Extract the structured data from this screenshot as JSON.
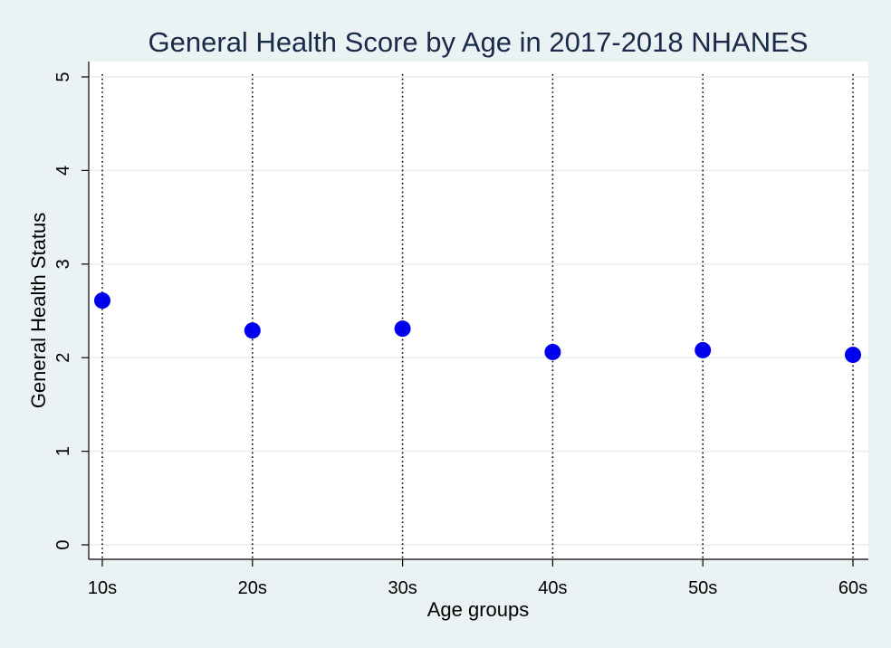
{
  "chart_data": {
    "type": "scatter",
    "title": "General Health Score by Age in 2017-2018 NHANES",
    "xlabel": "Age groups",
    "ylabel": "General Health Status",
    "categories": [
      "10s",
      "20s",
      "30s",
      "40s",
      "50s",
      "60s"
    ],
    "series": [
      {
        "values": [
          2.61,
          2.29,
          2.31,
          2.06,
          2.08,
          2.03
        ]
      }
    ],
    "ylim": [
      0,
      5
    ],
    "yticks": [
      "0",
      "1",
      "2",
      "3",
      "4",
      "5"
    ],
    "grid": true,
    "category_guides": "dotted vertical lines",
    "colors": {
      "background": "#eaf2f3",
      "plot_background": "#ffffff",
      "marker": "#0000ee",
      "gridline": "#eaf2f3",
      "title": "#1a2a4a"
    }
  }
}
